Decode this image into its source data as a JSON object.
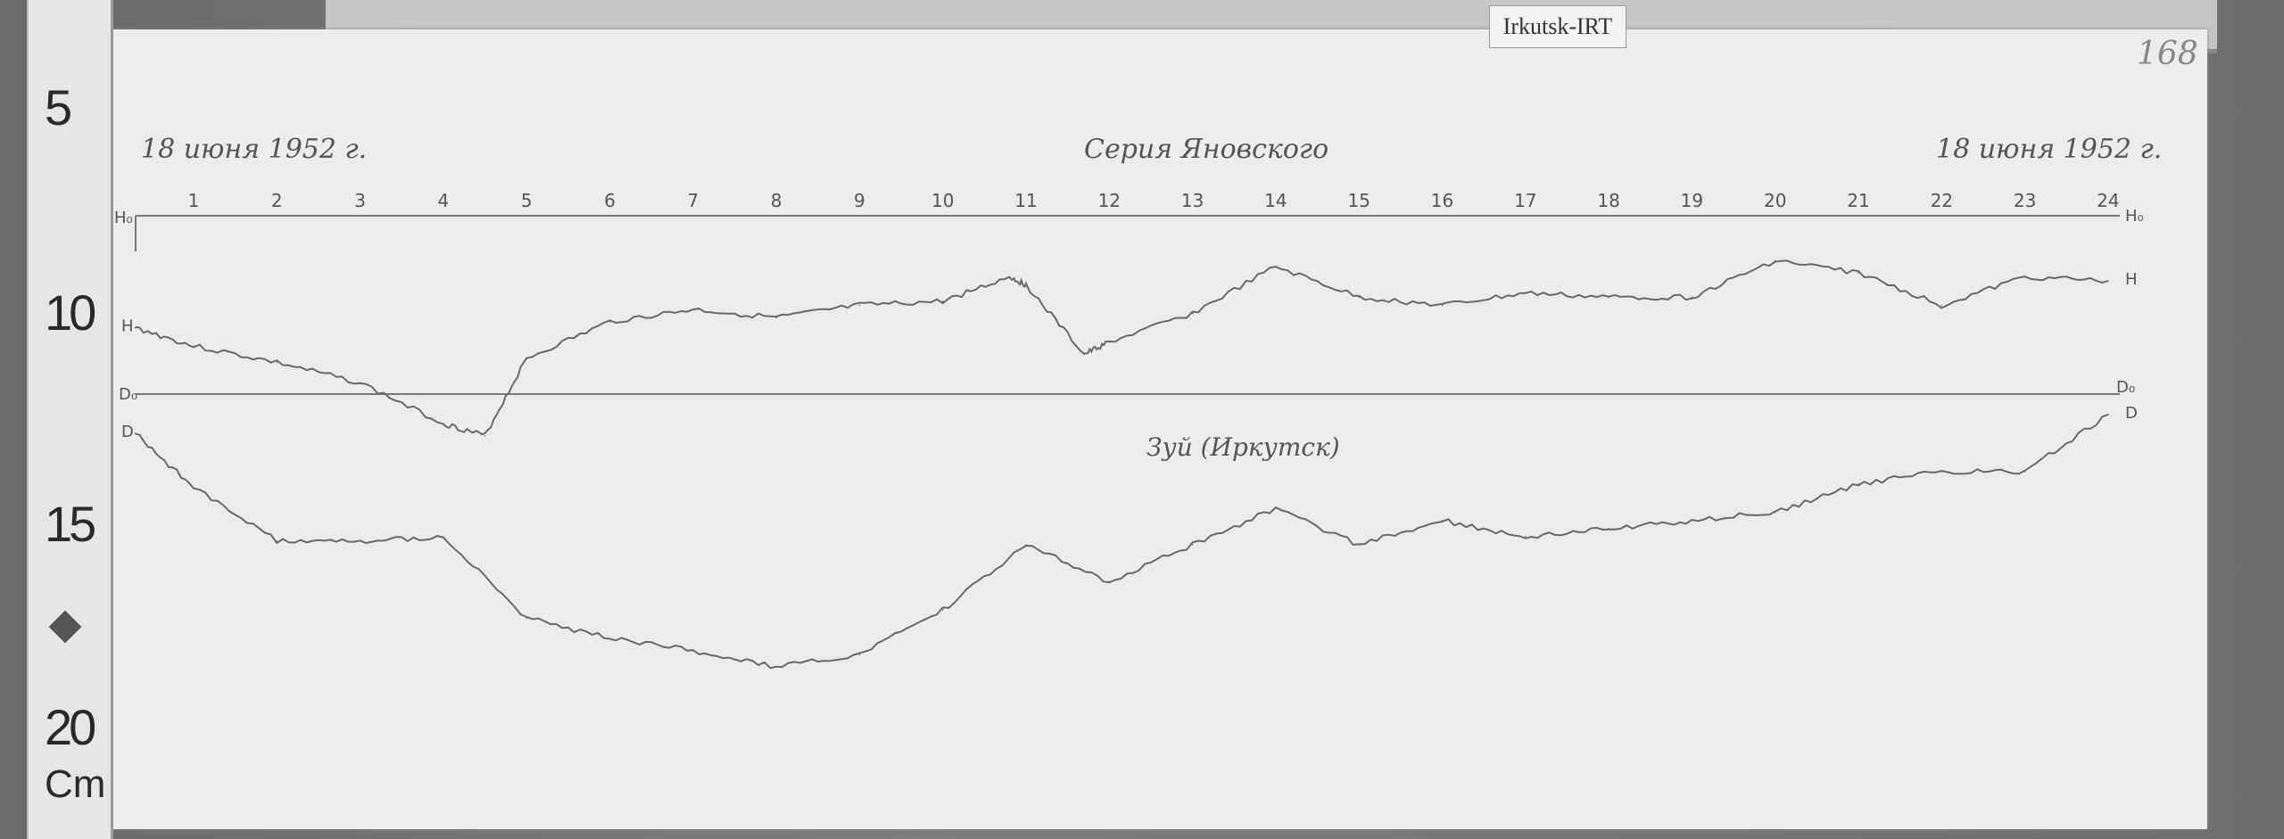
{
  "label_tag": "Irkutsk-IRT",
  "sheet_number": "168",
  "date_left": "18 июня 1952 г.",
  "title": "Серия Яновского",
  "date_right": "18 июня 1952 г.",
  "station": "Зуй (Иркутск)",
  "ruler": {
    "marks": [
      "5",
      "10",
      "15",
      "20"
    ],
    "unit": "Cm"
  },
  "chart_data": {
    "type": "line",
    "title": "Серия Яновского",
    "hour_labels": [
      "1",
      "2",
      "3",
      "4",
      "5",
      "6",
      "7",
      "8",
      "9",
      "10",
      "11",
      "12",
      "13",
      "14",
      "15",
      "16",
      "17",
      "18",
      "19",
      "20",
      "21",
      "22",
      "23",
      "24"
    ],
    "baseline_labels": {
      "h0": "H₀",
      "d0": "D₀"
    },
    "grid": false,
    "series": [
      {
        "name": "H",
        "x": [
          0.3,
          1,
          2,
          3,
          4,
          4.5,
          5,
          6,
          7,
          8,
          9,
          10,
          10.8,
          11,
          11.7,
          12,
          13,
          14,
          15,
          16,
          17,
          18,
          19,
          20,
          21,
          22,
          23,
          24
        ],
        "y": [
          2.75,
          3.2,
          3.6,
          4.1,
          5.1,
          5.4,
          3.5,
          2.6,
          2.3,
          2.5,
          2.2,
          2.1,
          1.5,
          1.7,
          3.4,
          3.1,
          2.4,
          1.25,
          2.0,
          2.2,
          1.9,
          2.0,
          2.0,
          1.1,
          1.4,
          2.2,
          1.5,
          1.6
        ]
      },
      {
        "name": "D",
        "x": [
          0.3,
          1,
          2,
          3,
          4,
          5,
          6,
          7,
          8,
          9,
          10,
          11,
          12,
          13,
          14,
          15,
          16,
          17,
          18,
          19,
          20,
          21,
          22,
          23,
          24
        ],
        "y": [
          0.96,
          2.3,
          3.6,
          3.6,
          3.5,
          5.5,
          6.0,
          6.3,
          6.7,
          6.4,
          5.3,
          3.7,
          4.6,
          3.7,
          2.8,
          3.7,
          3.1,
          3.5,
          3.3,
          3.1,
          2.9,
          2.2,
          1.9,
          1.9,
          0.5
        ]
      }
    ]
  }
}
